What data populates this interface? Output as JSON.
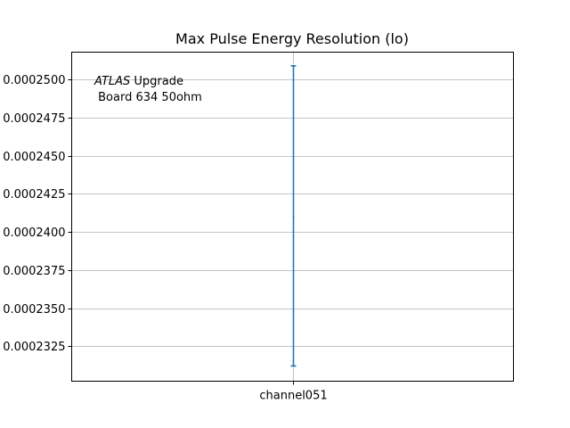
{
  "chart_data": {
    "type": "errorbar",
    "title": "Max Pulse Energy Resolution (lo)",
    "xlabel": "",
    "ylabel": "",
    "categories": [
      "channel051"
    ],
    "points": [
      {
        "category": "channel051",
        "y": 0.000241,
        "yerr_low": 0.0002312,
        "yerr_high": 0.0002509
      }
    ],
    "yticks": [
      0.0002325,
      0.000235,
      0.0002375,
      0.00024,
      0.0002425,
      0.000245,
      0.0002475,
      0.00025
    ],
    "ytick_labels": [
      "0.0002325",
      "0.0002350",
      "0.0002375",
      "0.0002400",
      "0.0002425",
      "0.0002450",
      "0.0002475",
      "0.0002500"
    ],
    "ylim": [
      0.0002302,
      0.0002518
    ],
    "grid": true,
    "annotation": {
      "italic_part": "ATLAS",
      "line1_rest": " Upgrade",
      "line2": " Board 634 50ohm"
    },
    "colors": {
      "series": "#1f77b4",
      "grid": "#b0b0b0",
      "axes": "#000000"
    }
  }
}
